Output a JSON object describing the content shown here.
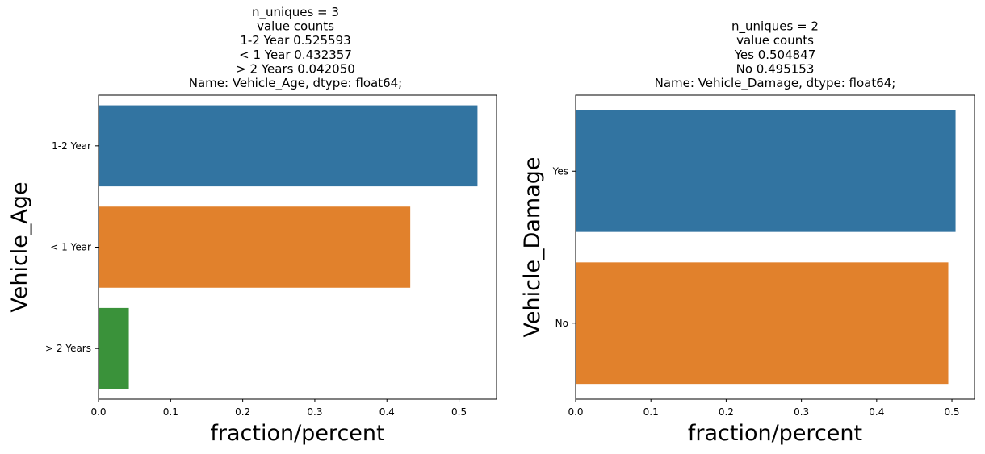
{
  "chart_data": [
    {
      "type": "bar",
      "orientation": "horizontal",
      "title_lines": [
        "n_uniques = 3",
        "value counts",
        "1-2 Year     0.525593",
        "< 1 Year     0.432357",
        "> 2 Years    0.042050",
        "Name: Vehicle_Age, dtype: float64;"
      ],
      "categories": [
        "1-2 Year",
        "< 1 Year",
        "> 2 Years"
      ],
      "values": [
        0.525593,
        0.432357,
        0.04205
      ],
      "colors": [
        "#3274a1",
        "#e1812c",
        "#3a923a"
      ],
      "xlabel": "fraction/percent",
      "ylabel": "Vehicle_Age",
      "xlim": [
        0,
        0.552
      ],
      "xticks": [
        0.0,
        0.1,
        0.2,
        0.3,
        0.4,
        0.5
      ],
      "xtick_labels": [
        "0.0",
        "0.1",
        "0.2",
        "0.3",
        "0.4",
        "0.5"
      ],
      "grid": false,
      "legend": "none"
    },
    {
      "type": "bar",
      "orientation": "horizontal",
      "title_lines": [
        "n_uniques = 2",
        "value counts",
        "Yes    0.504847",
        "No     0.495153",
        "Name: Vehicle_Damage, dtype: float64;"
      ],
      "categories": [
        "Yes",
        "No"
      ],
      "values": [
        0.504847,
        0.495153
      ],
      "colors": [
        "#3274a1",
        "#e1812c"
      ],
      "xlabel": "fraction/percent",
      "ylabel": "Vehicle_Damage",
      "xlim": [
        0,
        0.53
      ],
      "xticks": [
        0.0,
        0.1,
        0.2,
        0.3,
        0.4,
        0.5
      ],
      "xtick_labels": [
        "0.0",
        "0.1",
        "0.2",
        "0.3",
        "0.4",
        "0.5"
      ],
      "grid": false,
      "legend": "none"
    }
  ]
}
